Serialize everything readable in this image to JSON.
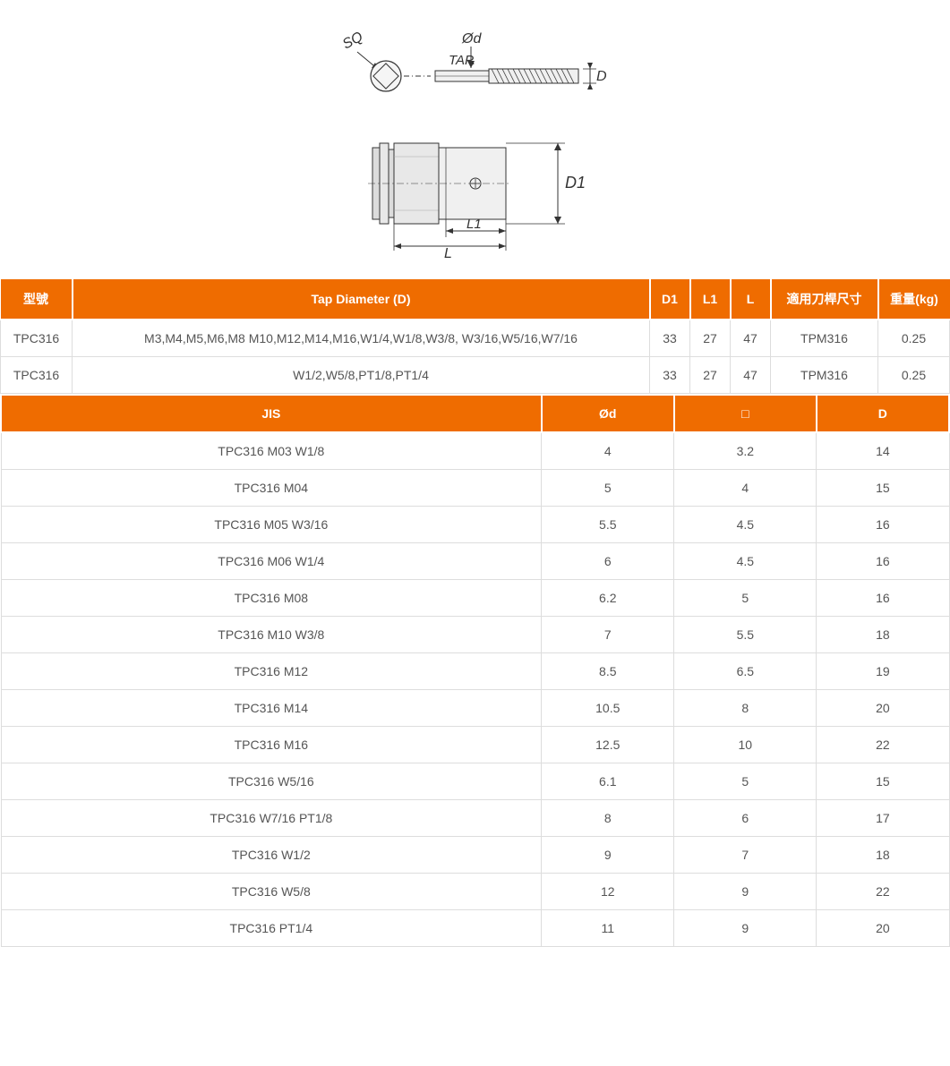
{
  "diagram": {
    "label_sq": "SQ",
    "label_od": "Ød",
    "label_tap": "TAP.",
    "label_d": "D",
    "label_d1": "D1",
    "label_l1": "L1",
    "label_l": "L",
    "stroke_color": "#555555",
    "fill_metal": "#e8e8e8",
    "fill_metal_dark": "#cccccc",
    "text_color": "#333333",
    "italic_font": "italic"
  },
  "table1": {
    "headers": {
      "model": "型號",
      "tap_diameter": "Tap Diameter (D)",
      "d1": "D1",
      "l1": "L1",
      "l": "L",
      "holder": "適用刀桿尺寸",
      "weight": "重量(kg)"
    },
    "rows": [
      {
        "model": "TPC316",
        "tap": "M3,M4,M5,M6,M8 M10,M12,M14,M16,W1/4,W1/8,W3/8, W3/16,W5/16,W7/16",
        "d1": "33",
        "l1": "27",
        "l": "47",
        "holder": "TPM316",
        "weight": "0.25"
      },
      {
        "model": "TPC316",
        "tap": "W1/2,W5/8,PT1/8,PT1/4",
        "d1": "33",
        "l1": "27",
        "l": "47",
        "holder": "TPM316",
        "weight": "0.25"
      }
    ]
  },
  "table2": {
    "headers": {
      "jis": "JIS",
      "od": "Ød",
      "sq": "□",
      "d": "D"
    },
    "rows": [
      {
        "jis": "TPC316 M03 W1/8",
        "od": "4",
        "sq": "3.2",
        "d": "14"
      },
      {
        "jis": "TPC316 M04",
        "od": "5",
        "sq": "4",
        "d": "15"
      },
      {
        "jis": "TPC316 M05 W3/16",
        "od": "5.5",
        "sq": "4.5",
        "d": "16"
      },
      {
        "jis": "TPC316 M06 W1/4",
        "od": "6",
        "sq": "4.5",
        "d": "16"
      },
      {
        "jis": "TPC316 M08",
        "od": "6.2",
        "sq": "5",
        "d": "16"
      },
      {
        "jis": "TPC316 M10 W3/8",
        "od": "7",
        "sq": "5.5",
        "d": "18"
      },
      {
        "jis": "TPC316 M12",
        "od": "8.5",
        "sq": "6.5",
        "d": "19"
      },
      {
        "jis": "TPC316 M14",
        "od": "10.5",
        "sq": "8",
        "d": "20"
      },
      {
        "jis": "TPC316 M16",
        "od": "12.5",
        "sq": "10",
        "d": "22"
      },
      {
        "jis": "TPC316 W5/16",
        "od": "6.1",
        "sq": "5",
        "d": "15"
      },
      {
        "jis": "TPC316 W7/16 PT1/8",
        "od": "8",
        "sq": "6",
        "d": "17"
      },
      {
        "jis": "TPC316 W1/2",
        "od": "9",
        "sq": "7",
        "d": "18"
      },
      {
        "jis": "TPC316 W5/8",
        "od": "12",
        "sq": "9",
        "d": "22"
      },
      {
        "jis": "TPC316 PT1/4",
        "od": "11",
        "sq": "9",
        "d": "20"
      }
    ]
  }
}
